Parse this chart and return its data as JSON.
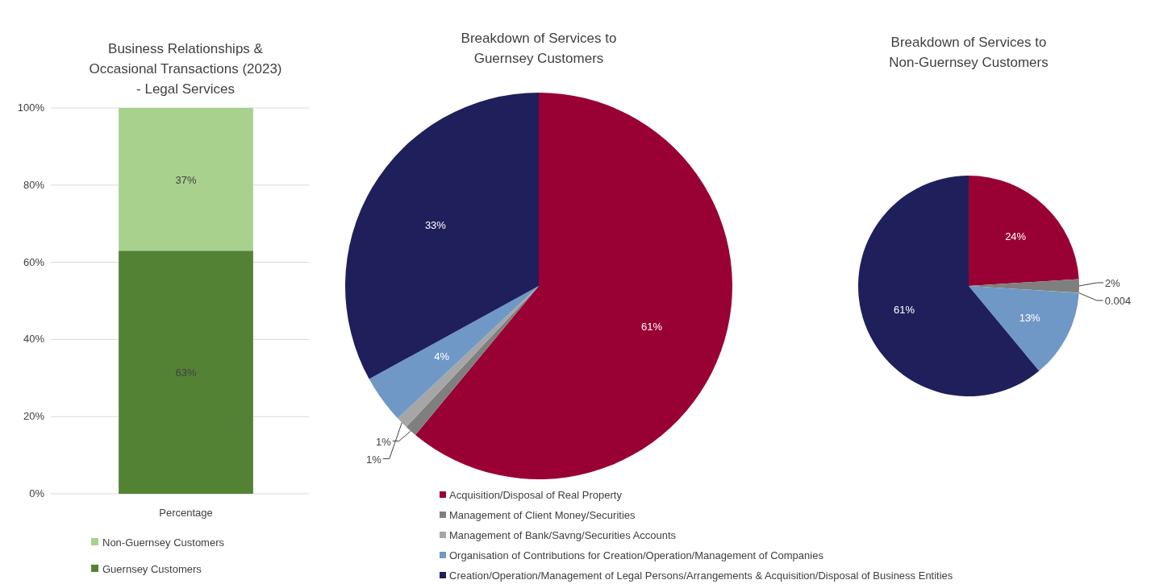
{
  "chart_data": [
    {
      "type": "bar",
      "stacked": true,
      "title": "Business Relationships & Occasional Transactions (2023) - Legal Services",
      "categories": [
        "Percentage"
      ],
      "series": [
        {
          "name": "Guernsey Customers",
          "color": "#548235",
          "values": [
            63
          ],
          "value_labels": [
            "63%"
          ]
        },
        {
          "name": "Non-Guernsey Customers",
          "color": "#a9d18e",
          "values": [
            37
          ],
          "value_labels": [
            "37%"
          ]
        }
      ],
      "ylim": [
        0,
        100
      ],
      "yticks": [
        {
          "value": 0,
          "label": "0%"
        },
        {
          "value": 20,
          "label": "20%"
        },
        {
          "value": 40,
          "label": "40%"
        },
        {
          "value": 60,
          "label": "60%"
        },
        {
          "value": 80,
          "label": "80%"
        },
        {
          "value": 100,
          "label": "100%"
        }
      ],
      "grid": "y",
      "legend": "bottom"
    },
    {
      "type": "pie",
      "title": "Breakdown of Services to Guernsey Customers",
      "categories": [
        "Acquisition/Disposal of Real Property",
        "Management of Client Money/Securities",
        "Management of Bank/Savng/Securities Accounts",
        "Organisation of Contributions for Creation/Operation/Management of Companies",
        "Creation/Operation/Management of Legal Persons/Arrangements & Acquisition/Disposal of Business Entities"
      ],
      "values": [
        61,
        1,
        1,
        4,
        33
      ],
      "value_labels": [
        "61%",
        "1%",
        "1%",
        "4%",
        "33%"
      ],
      "colors": [
        "#990033",
        "#7f7f7f",
        "#a6a6a6",
        "#6f98c6",
        "#1f1f5c"
      ],
      "legend": "bottom"
    },
    {
      "type": "pie",
      "title": "Breakdown of Services to Non-Guernsey Customers",
      "categories": [
        null,
        null,
        null,
        null,
        null
      ],
      "values": [
        24,
        2,
        0.004,
        13,
        61
      ],
      "value_labels": [
        "24%",
        "2%",
        "0.004",
        "13%",
        "61%"
      ],
      "colors": [
        "#990033",
        "#7f7f7f",
        "#a6a6a6",
        "#6f98c6",
        "#1f1f5c"
      ]
    }
  ]
}
